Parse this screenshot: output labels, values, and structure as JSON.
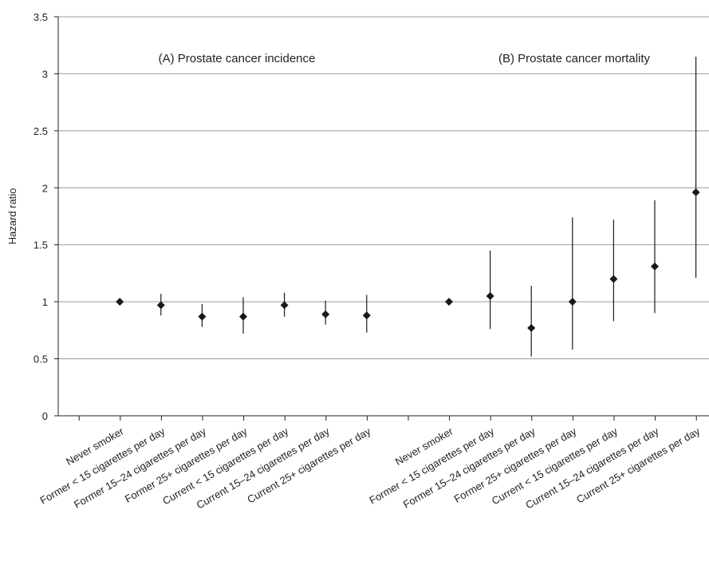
{
  "chart_data": {
    "type": "scatter",
    "ylabel": "Hazard ratio",
    "ylim": [
      0,
      3.5
    ],
    "yticks": [
      0,
      0.5,
      1,
      1.5,
      2,
      2.5,
      3,
      3.5
    ],
    "ytick_labels": [
      "0",
      "0.5",
      "1",
      "1.5",
      "2",
      "2.5",
      "3",
      "3.5"
    ],
    "grid": "horizontal",
    "marker": "diamond",
    "color": "#1a1a1a",
    "panels": [
      {
        "title": "(A) Prostate cancer incidence",
        "points": [
          {
            "label": "Never smoker",
            "hr": 1.0,
            "lower": 1.0,
            "upper": 1.0
          },
          {
            "label": "Former < 15 cigarettes per day",
            "hr": 0.97,
            "lower": 0.88,
            "upper": 1.07
          },
          {
            "label": "Former 15–24 cigarettes per day",
            "hr": 0.87,
            "lower": 0.78,
            "upper": 0.98
          },
          {
            "label": "Former 25+ cigarettes per day",
            "hr": 0.87,
            "lower": 0.72,
            "upper": 1.04
          },
          {
            "label": "Current < 15 cigarettes per day",
            "hr": 0.97,
            "lower": 0.87,
            "upper": 1.08
          },
          {
            "label": "Current 15–24 cigarettes per day",
            "hr": 0.89,
            "lower": 0.8,
            "upper": 1.01
          },
          {
            "label": "Current 25+ cigarettes per day",
            "hr": 0.88,
            "lower": 0.73,
            "upper": 1.06
          }
        ]
      },
      {
        "title": "(B) Prostate cancer mortality",
        "points": [
          {
            "label": "Never smoker",
            "hr": 1.0,
            "lower": 1.0,
            "upper": 1.0
          },
          {
            "label": "Former < 15 cigarettes per day",
            "hr": 1.05,
            "lower": 0.76,
            "upper": 1.45
          },
          {
            "label": "Former 15–24 cigarettes per day",
            "hr": 0.77,
            "lower": 0.52,
            "upper": 1.14
          },
          {
            "label": "Former 25+ cigarettes per day",
            "hr": 1.0,
            "lower": 0.58,
            "upper": 1.74
          },
          {
            "label": "Current < 15 cigarettes per day",
            "hr": 1.2,
            "lower": 0.83,
            "upper": 1.72
          },
          {
            "label": "Current 15–24 cigarettes per day",
            "hr": 1.31,
            "lower": 0.9,
            "upper": 1.89
          },
          {
            "label": "Current 25+ cigarettes per day",
            "hr": 1.96,
            "lower": 1.21,
            "upper": 3.15
          }
        ]
      }
    ]
  }
}
